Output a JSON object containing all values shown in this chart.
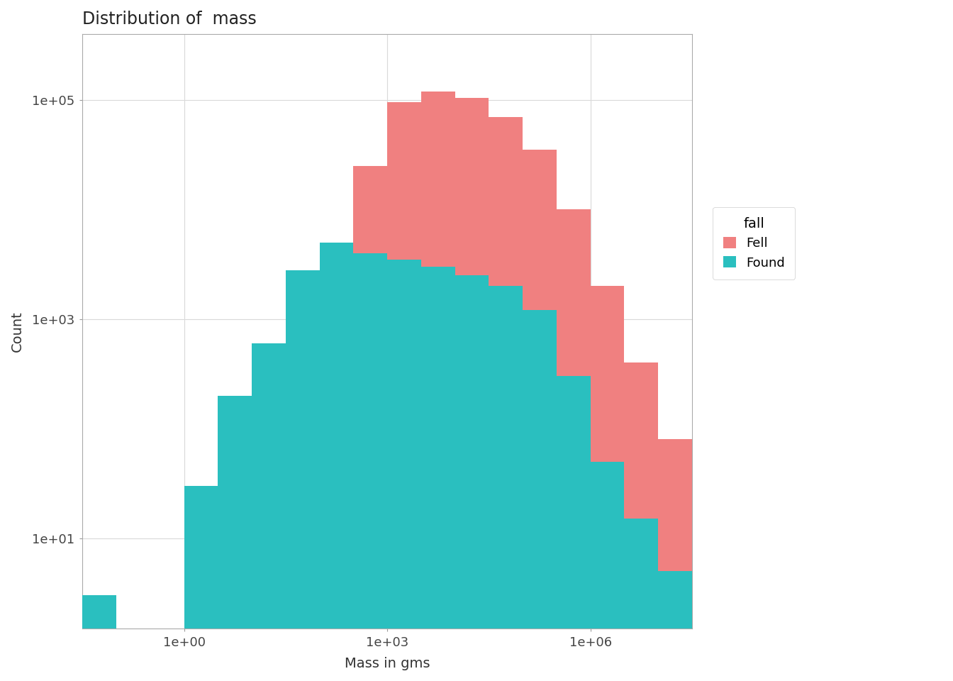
{
  "title": "Distribution of  mass",
  "xlabel": "Mass in gms",
  "ylabel": "Count",
  "legend_title": "fall",
  "legend_labels": [
    "Fell",
    "Found"
  ],
  "color_fell": "#F08080",
  "color_found": "#2ABFBF",
  "background_color": "#FFFFFF",
  "panel_background": "#FFFFFF",
  "grid_color": "#D9D9D9",
  "bin_edges_log": [
    -1.5,
    -1.0,
    -0.5,
    0.0,
    0.5,
    1.0,
    1.5,
    2.0,
    2.5,
    3.0,
    3.5,
    4.0,
    4.5,
    5.0,
    5.5,
    6.0,
    6.5,
    7.0,
    7.5
  ],
  "fell_counts": [
    0,
    0,
    0,
    5,
    25,
    130,
    600,
    4000,
    25000,
    95000,
    120000,
    105000,
    70000,
    35000,
    10000,
    2000,
    400,
    80
  ],
  "found_counts": [
    3,
    0,
    0,
    30,
    200,
    600,
    2800,
    5000,
    4000,
    3500,
    3000,
    2500,
    2000,
    1200,
    300,
    50,
    15,
    5
  ]
}
